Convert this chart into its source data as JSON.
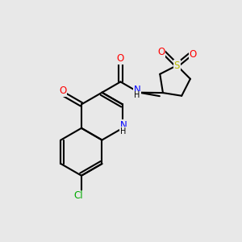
{
  "bg_color": "#e8e8e8",
  "atom_colors": {
    "C": "#000000",
    "N": "#0000ff",
    "O": "#ff0000",
    "S": "#bbbb00",
    "Cl": "#00aa00",
    "H": "#000000"
  },
  "bond_color": "#000000",
  "font_size": 8.5,
  "fig_size": [
    3.0,
    3.0
  ],
  "dpi": 100
}
